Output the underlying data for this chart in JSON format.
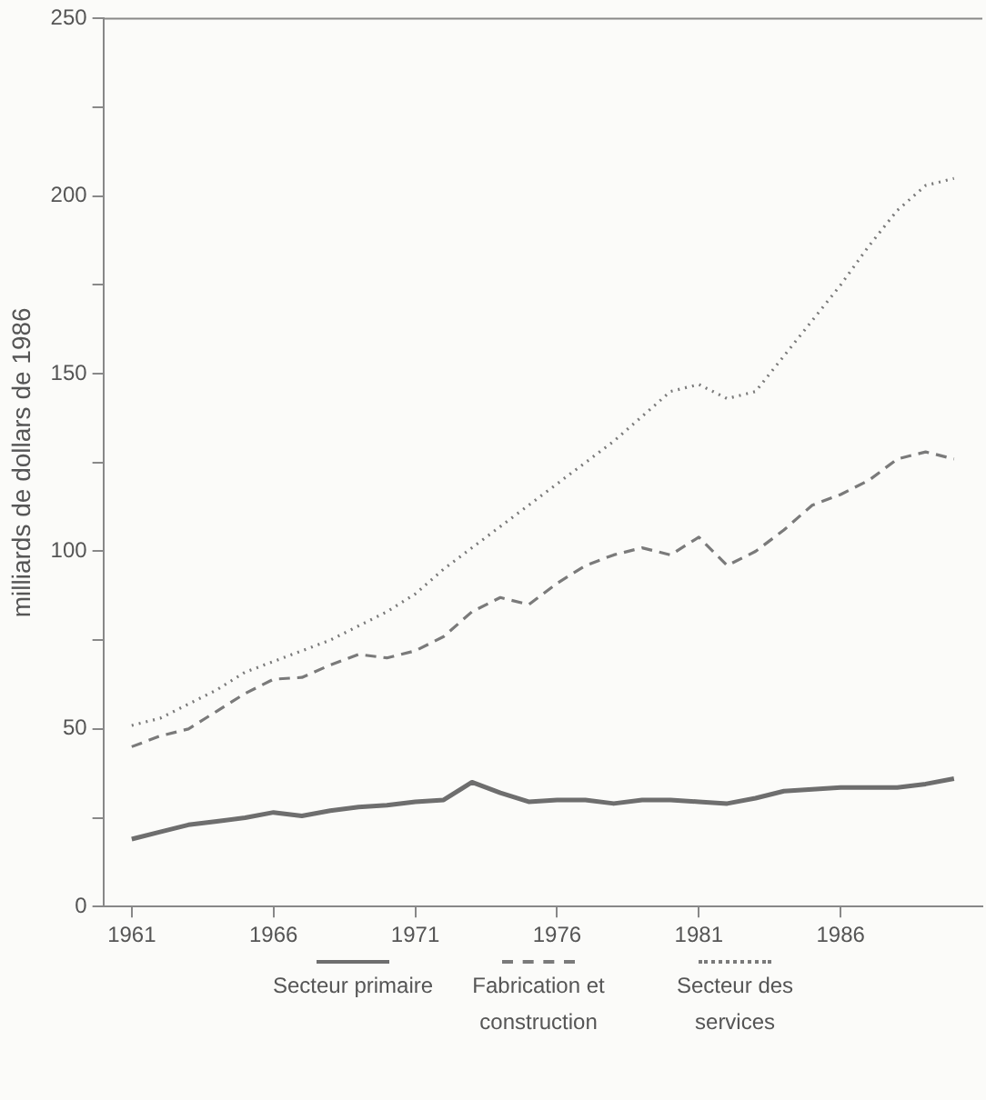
{
  "chart_data": {
    "type": "line",
    "ylabel": "milliards de dollars de 1986",
    "x": [
      1961,
      1962,
      1963,
      1964,
      1965,
      1966,
      1967,
      1968,
      1969,
      1970,
      1971,
      1972,
      1973,
      1974,
      1975,
      1976,
      1977,
      1978,
      1979,
      1980,
      1981,
      1982,
      1983,
      1984,
      1985,
      1986,
      1987,
      1988,
      1989,
      1990
    ],
    "series": [
      {
        "name": "Secteur primaire",
        "color": "#6e6e6e",
        "line_style": "solid",
        "values": [
          19,
          21,
          23,
          24,
          25,
          26.5,
          25.5,
          27,
          28,
          28.5,
          29.5,
          30,
          35,
          32,
          29.5,
          30,
          30,
          29,
          30,
          30,
          29.5,
          29,
          30.5,
          32.5,
          33,
          33.5,
          33.5,
          33.5,
          34.5,
          36
        ]
      },
      {
        "name": "Fabrication et construction",
        "color": "#7a7a7a",
        "line_style": "dashed",
        "values": [
          45,
          48,
          50,
          55,
          60,
          64,
          64.5,
          68,
          71,
          70,
          72,
          76,
          83,
          87,
          85,
          91,
          96,
          99,
          101,
          99,
          104,
          96,
          100,
          106,
          113,
          116,
          120,
          126,
          128,
          126
        ]
      },
      {
        "name": "Secteur des services",
        "color": "#7a7a7a",
        "line_style": "dotted",
        "values": [
          51,
          53,
          57,
          61,
          66,
          69,
          72,
          75,
          79,
          83,
          88,
          95,
          101,
          107,
          113,
          119,
          125,
          131,
          138,
          145,
          147,
          143,
          145,
          155,
          165,
          175,
          186,
          196,
          203,
          205
        ]
      }
    ],
    "xlim": [
      1960,
      1991
    ],
    "xticks": [
      1961,
      1966,
      1971,
      1976,
      1981,
      1986
    ],
    "ylim": [
      0,
      250
    ],
    "yticks": [
      0,
      {
        "value": 25,
        "label": null
      },
      50,
      {
        "value": 75,
        "label": null
      },
      100,
      {
        "value": 125,
        "label": null
      },
      150,
      {
        "value": 175,
        "label": null
      },
      200,
      {
        "value": 225,
        "label": null
      },
      250
    ],
    "grid": false,
    "legend": "bottom",
    "marker": "none"
  }
}
